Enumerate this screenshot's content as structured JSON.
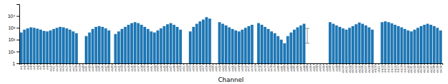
{
  "chart_data": {
    "type": "bar",
    "xlabel": "Channel",
    "log": "y",
    "grid": false,
    "ylim": [
      1,
      100000
    ],
    "yticks": [
      1,
      {
        "value": 10,
        "label": "10¹"
      },
      {
        "value": 100,
        "label": "10²"
      },
      {
        "value": 1000,
        "label": "10³"
      },
      {
        "value": 10000,
        "label": "10⁴"
      }
    ],
    "categories": [
      "ch1",
      "ch2",
      "ch3",
      "ch4",
      "ch5",
      "ch6",
      "ch7",
      "ch8",
      "ch9",
      "ch10",
      "ch11",
      "ch12",
      "ch13",
      "ch14",
      "ch15",
      "ch16",
      "ch17",
      "ch18",
      "ch19",
      "ch20",
      "ch21",
      "ch22",
      "ch23",
      "ch24",
      "ch25",
      "ch26",
      "ch27",
      "ch28",
      "ch29",
      "ch30",
      "ch31",
      "ch32",
      "ch33",
      "ch34",
      "ch35",
      "ch36",
      "ch37",
      "ch38",
      "ch39",
      "ch40",
      "ch41",
      "ch42",
      "ch43",
      "ch44",
      "ch45",
      "ch46",
      "ch47",
      "ch48",
      "ch49",
      "ch50",
      "ch51",
      "ch52",
      "ch53",
      "ch54",
      "ch55",
      "ch56",
      "ch57",
      "ch58",
      "ch59",
      "ch60",
      "ch61",
      "ch62",
      "ch63",
      "ch64",
      "ch65",
      "ch66",
      "ch67",
      "ch68",
      "ch69",
      "ch70",
      "ch71",
      "ch72",
      "ch73",
      "ch74",
      "ch75",
      "ch76",
      "ch77",
      "ch78",
      "ch79",
      "ch80",
      "ch81",
      "ch82",
      "ch83",
      "ch84",
      "ch85",
      "ch86",
      "ch87",
      "ch88",
      "ch89",
      "ch90",
      "ch91",
      "ch92",
      "ch93",
      "ch94",
      "ch95",
      "ch96",
      "ch97",
      "ch98",
      "ch99",
      "ch100",
      "ch101",
      "ch102",
      "ch103",
      "ch104",
      "ch105",
      "ch106",
      "ch107",
      "ch108",
      "ch109",
      "ch110",
      "ch111",
      "ch112",
      "ch113",
      "ch114",
      "ch115",
      "ch116",
      "ch117",
      "ch118",
      "ch119",
      "ch120",
      "ch121",
      "ch122",
      "ch123",
      "ch124",
      "ch125",
      "ch126",
      "ch127",
      "ch128",
      "ch129",
      "ch130"
    ],
    "values": [
      400,
      700,
      900,
      1100,
      1000,
      850,
      700,
      550,
      500,
      600,
      800,
      1000,
      1200,
      1100,
      900,
      700,
      500,
      350,
      null,
      null,
      200,
      400,
      800,
      1200,
      1400,
      1200,
      900,
      600,
      null,
      300,
      500,
      800,
      1200,
      1800,
      2500,
      3000,
      2500,
      1800,
      1200,
      800,
      500,
      400,
      600,
      900,
      1400,
      2000,
      2500,
      1800,
      1200,
      700,
      null,
      null,
      500,
      1200,
      2200,
      3500,
      5000,
      8000,
      6000,
      null,
      null,
      3000,
      2200,
      1600,
      1100,
      800,
      600,
      500,
      700,
      1000,
      1400,
      1800,
      null,
      2500,
      1800,
      1200,
      800,
      500,
      350,
      200,
      100,
      50,
      200,
      400,
      700,
      1100,
      1600,
      2200,
      null,
      null,
      null,
      null,
      null,
      null,
      null,
      3000,
      2200,
      1600,
      1200,
      900,
      700,
      1000,
      1400,
      2000,
      2800,
      2200,
      1600,
      1100,
      700,
      null,
      null,
      3000,
      3500,
      3000,
      2400,
      1800,
      1400,
      1100,
      800,
      600,
      500,
      700,
      1000,
      1400,
      1800,
      2200,
      1800,
      1400,
      1000,
      600
    ],
    "error_bar": {
      "x": "ch89",
      "y": 300,
      "minus": 250,
      "plus": 600,
      "color": "#888888"
    }
  }
}
